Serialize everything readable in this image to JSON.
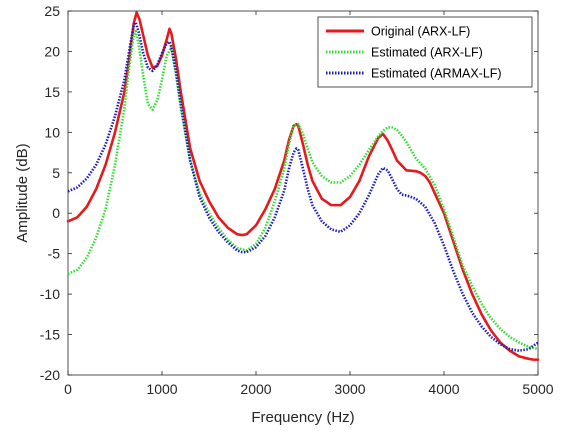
{
  "chart_data": {
    "type": "line",
    "xlabel": "Frequency (Hz)",
    "ylabel": "Amplitude (dB)",
    "xlim": [
      0,
      5000
    ],
    "ylim": [
      -20,
      25
    ],
    "xticks": [
      0,
      1000,
      2000,
      3000,
      4000,
      5000
    ],
    "yticks": [
      25,
      20,
      15,
      10,
      5,
      0,
      -5,
      -10,
      -15,
      -20
    ],
    "grid": false,
    "legend_position": "top-right",
    "series": [
      {
        "name": "Original (ARX-LF)",
        "color": "#e41a1c",
        "style": "solid",
        "x": [
          0,
          100,
          200,
          300,
          400,
          500,
          600,
          650,
          700,
          730,
          760,
          800,
          850,
          900,
          950,
          1000,
          1050,
          1080,
          1100,
          1150,
          1200,
          1300,
          1400,
          1500,
          1600,
          1700,
          1800,
          1850,
          1900,
          2000,
          2100,
          2200,
          2300,
          2350,
          2400,
          2430,
          2450,
          2500,
          2550,
          2600,
          2700,
          2800,
          2900,
          3000,
          3100,
          3200,
          3300,
          3350,
          3400,
          3450,
          3500,
          3600,
          3700,
          3750,
          3800,
          3850,
          3900,
          4000,
          4100,
          4200,
          4300,
          4400,
          4500,
          4600,
          4700,
          4800,
          4900,
          4950,
          5000
        ],
        "y": [
          -1,
          -0.5,
          0.8,
          3,
          6,
          10,
          15,
          19,
          23.5,
          24.8,
          24,
          22,
          19.5,
          18,
          18.2,
          19.5,
          21.5,
          22.8,
          22.2,
          19,
          15,
          8,
          4,
          1.5,
          -0.5,
          -1.8,
          -2.6,
          -2.7,
          -2.6,
          -1.5,
          0.5,
          3,
          6.5,
          9,
          10.8,
          11,
          10.8,
          8.5,
          6,
          4,
          1.8,
          1,
          1,
          2,
          4,
          7,
          9.3,
          9.8,
          9,
          7.8,
          6.5,
          5.3,
          5.2,
          5,
          4.6,
          3.8,
          2.5,
          0,
          -3.5,
          -7,
          -10,
          -12.5,
          -14.5,
          -16,
          -17,
          -17.7,
          -18,
          -18.1,
          -18.1
        ]
      },
      {
        "name": "Estimated (ARX-LF)",
        "color": "#33dd33",
        "style": "dotted",
        "x": [
          0,
          100,
          200,
          300,
          400,
          500,
          600,
          650,
          700,
          720,
          750,
          800,
          850,
          900,
          950,
          1000,
          1050,
          1100,
          1150,
          1200,
          1300,
          1400,
          1500,
          1600,
          1700,
          1800,
          1900,
          2000,
          2100,
          2200,
          2300,
          2350,
          2400,
          2450,
          2500,
          2550,
          2600,
          2700,
          2800,
          2900,
          3000,
          3100,
          3200,
          3300,
          3350,
          3400,
          3450,
          3500,
          3550,
          3600,
          3650,
          3700,
          3800,
          3900,
          4000,
          4100,
          4200,
          4300,
          4400,
          4500,
          4600,
          4700,
          4800,
          4900,
          5000
        ],
        "y": [
          -7.5,
          -7,
          -5.5,
          -3,
          0.5,
          6,
          13,
          18,
          22,
          22.5,
          21,
          17,
          13.5,
          12.8,
          14,
          16.5,
          19.5,
          20.5,
          17,
          13,
          6.5,
          2.5,
          0,
          -1.8,
          -3.3,
          -4.3,
          -4.6,
          -3.8,
          -1.8,
          1.5,
          5.5,
          8.5,
          10.8,
          11,
          9.8,
          8,
          6.3,
          4.6,
          3.8,
          3.8,
          4.6,
          6,
          7.8,
          9.5,
          10.2,
          10.6,
          10.6,
          10.3,
          9.6,
          8.8,
          7.8,
          6.8,
          5.5,
          3.5,
          0.5,
          -3,
          -6.5,
          -9,
          -11.2,
          -13,
          -14.3,
          -15.3,
          -16,
          -16.5,
          -16.8
        ]
      },
      {
        "name": "Estimated (ARMAX-LF)",
        "color": "#1a1abf",
        "style": "dotted",
        "x": [
          0,
          100,
          200,
          300,
          400,
          500,
          600,
          650,
          700,
          720,
          750,
          800,
          850,
          900,
          950,
          1000,
          1050,
          1080,
          1100,
          1150,
          1200,
          1300,
          1400,
          1500,
          1600,
          1700,
          1800,
          1850,
          1900,
          2000,
          2100,
          2200,
          2300,
          2350,
          2400,
          2430,
          2450,
          2500,
          2550,
          2600,
          2700,
          2800,
          2900,
          3000,
          3100,
          3200,
          3300,
          3350,
          3400,
          3450,
          3500,
          3550,
          3600,
          3700,
          3800,
          3900,
          4000,
          4100,
          4200,
          4300,
          4400,
          4500,
          4600,
          4700,
          4800,
          4900,
          5000
        ],
        "y": [
          2.7,
          3.2,
          4.3,
          6,
          8.5,
          12,
          16.5,
          20,
          23.3,
          23.6,
          22.5,
          19.8,
          18,
          17.6,
          18.3,
          19.8,
          21,
          21.2,
          20.5,
          17.5,
          13.5,
          6.5,
          2,
          -0.5,
          -2.3,
          -3.6,
          -4.6,
          -4.8,
          -4.8,
          -4.2,
          -2.8,
          -0.5,
          2.8,
          5.5,
          7.5,
          8,
          7.8,
          5.5,
          3,
          1,
          -1,
          -2,
          -2.3,
          -1.5,
          0,
          2.2,
          4.8,
          5.6,
          5.3,
          4.2,
          3,
          2.3,
          2.2,
          1.8,
          0.8,
          -1.2,
          -4,
          -7.2,
          -10,
          -12.3,
          -14,
          -15.3,
          -16.2,
          -16.8,
          -17,
          -16.8,
          -16
        ]
      }
    ]
  }
}
